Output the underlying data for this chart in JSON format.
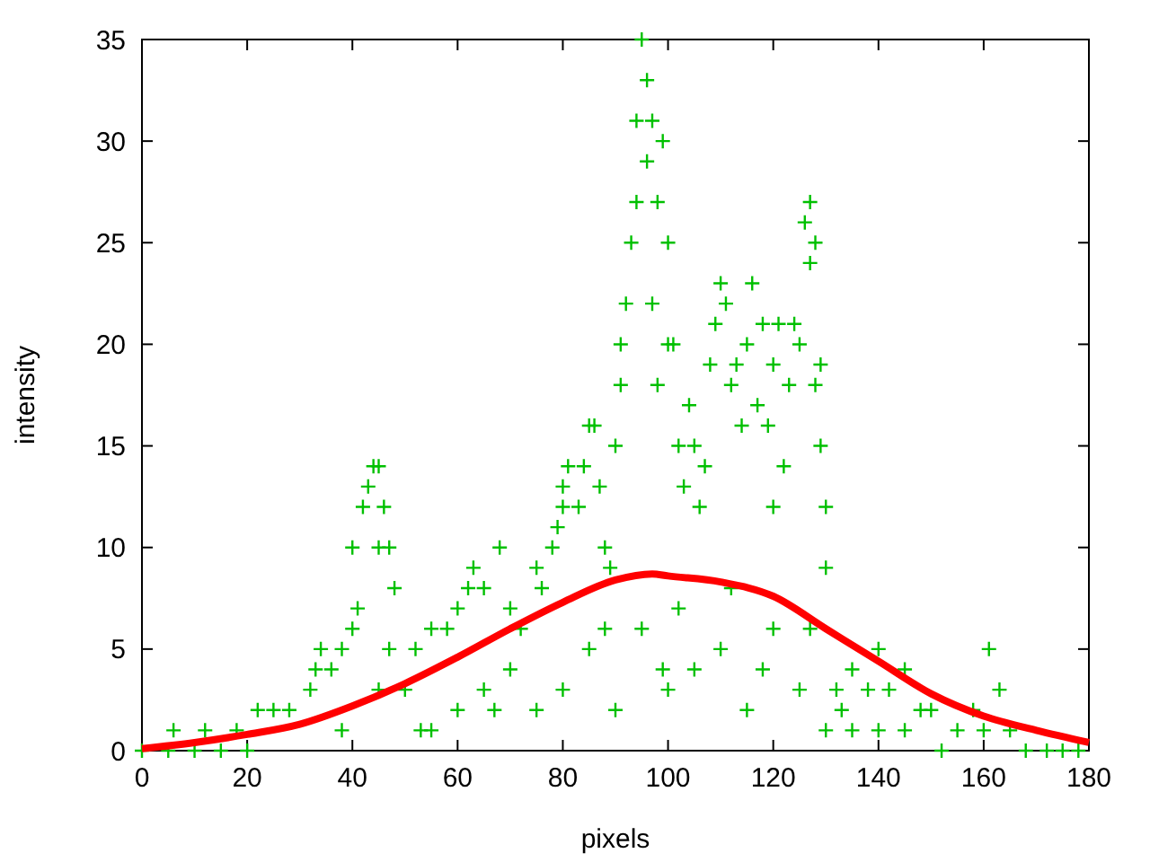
{
  "chart_data": {
    "type": "scatter",
    "xlabel": "pixels",
    "ylabel": "intensity",
    "xlim": [
      0,
      180
    ],
    "ylim": [
      0,
      35
    ],
    "xticks": [
      0,
      20,
      40,
      60,
      80,
      100,
      120,
      140,
      160,
      180
    ],
    "yticks": [
      0,
      5,
      10,
      15,
      20,
      25,
      30,
      35
    ],
    "grid": false,
    "series": [
      {
        "color": "#00c000",
        "marker": "cross",
        "x": [
          0,
          5,
          10,
          15,
          20,
          6,
          12,
          18,
          22,
          25,
          28,
          32,
          33,
          34,
          36,
          38,
          40,
          41,
          40,
          42,
          43,
          44,
          45,
          46,
          45,
          47,
          48,
          47,
          50,
          52,
          53,
          55,
          55,
          58,
          60,
          62,
          63,
          65,
          65,
          67,
          68,
          70,
          72,
          75,
          76,
          78,
          79,
          80,
          80,
          81,
          83,
          84,
          85,
          86,
          87,
          88,
          89,
          90,
          91,
          91,
          92,
          93,
          94,
          94,
          95,
          96,
          96,
          97,
          97,
          98,
          99,
          100,
          98,
          100,
          101,
          99,
          102,
          103,
          104,
          105,
          106,
          107,
          108,
          109,
          110,
          111,
          112,
          113,
          114,
          115,
          116,
          117,
          118,
          119,
          120,
          120,
          121,
          122,
          123,
          124,
          125,
          126,
          127,
          127,
          128,
          128,
          129,
          129,
          130,
          130,
          127,
          132,
          133,
          135,
          138,
          140,
          142,
          145,
          148,
          150,
          152,
          155,
          158,
          160,
          161,
          163,
          165,
          168,
          172,
          175,
          178,
          60,
          70,
          80,
          85,
          90,
          95,
          100,
          105,
          110,
          115,
          120,
          125,
          130,
          135,
          140,
          145,
          75,
          88,
          102,
          112,
          118,
          38,
          45
        ],
        "values": [
          0,
          0,
          0,
          0,
          0,
          1,
          1,
          1,
          2,
          2,
          2,
          3,
          4,
          5,
          4,
          5,
          6,
          7,
          10,
          12,
          13,
          14,
          14,
          12,
          10,
          10,
          8,
          5,
          3,
          5,
          1,
          1,
          6,
          6,
          7,
          8,
          9,
          8,
          3,
          2,
          10,
          7,
          6,
          9,
          8,
          10,
          11,
          13,
          12,
          14,
          12,
          14,
          16,
          16,
          13,
          10,
          9,
          15,
          18,
          20,
          22,
          25,
          31,
          27,
          35,
          33,
          29,
          31,
          22,
          27,
          30,
          25,
          18,
          20,
          20,
          4,
          15,
          13,
          17,
          15,
          12,
          14,
          19,
          21,
          23,
          22,
          18,
          19,
          16,
          20,
          23,
          17,
          21,
          16,
          12,
          19,
          21,
          14,
          18,
          21,
          20,
          26,
          27,
          24,
          25,
          18,
          19,
          15,
          12,
          9,
          6,
          3,
          2,
          4,
          3,
          5,
          3,
          4,
          2,
          2,
          0,
          1,
          2,
          1,
          5,
          3,
          1,
          0,
          0,
          0,
          0,
          2,
          4,
          3,
          5,
          2,
          6,
          3,
          4,
          5,
          2,
          6,
          3,
          1,
          1,
          1,
          1,
          2,
          6,
          7,
          8,
          4,
          1,
          3
        ]
      },
      {
        "type": "line",
        "color": "#ff0000",
        "x": [
          0,
          10,
          20,
          30,
          40,
          50,
          60,
          70,
          80,
          90,
          97,
          100,
          110,
          120,
          130,
          140,
          150,
          160,
          170,
          180
        ],
        "values": [
          0.1,
          0.4,
          0.8,
          1.3,
          2.2,
          3.3,
          4.6,
          6.0,
          7.3,
          8.4,
          8.7,
          8.6,
          8.3,
          7.6,
          6.0,
          4.4,
          2.8,
          1.7,
          1.0,
          0.4
        ]
      }
    ]
  }
}
